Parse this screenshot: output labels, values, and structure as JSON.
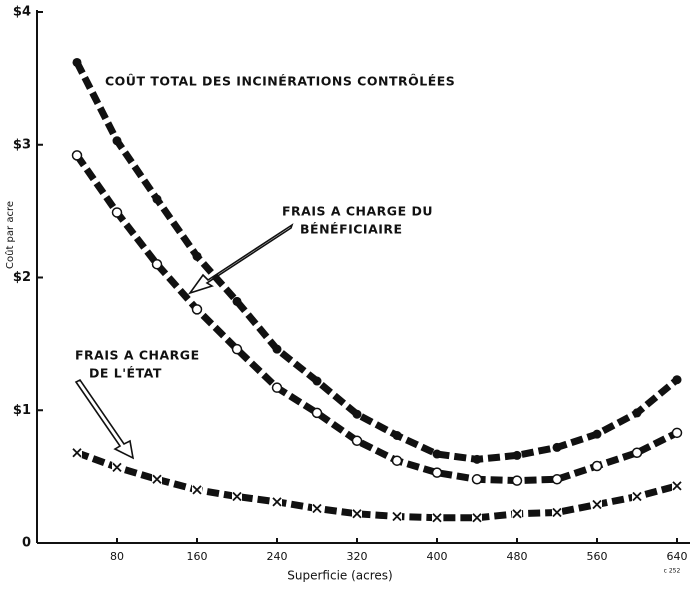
{
  "chart_data": {
    "type": "line",
    "x_label": "Superficie (acres)",
    "y_label": "Coût par acre",
    "figure_code": "c 252",
    "annotations": [
      [
        "COÛT TOTAL DES INCINÉRATIONS CONTRÔLÉES"
      ],
      [
        "FRAIS A CHARGE DU",
        "BÉNÉFICIAIRE"
      ],
      [
        "FRAIS A CHARGE",
        "DE L'ÉTAT"
      ]
    ],
    "x": [
      40,
      80,
      120,
      160,
      200,
      240,
      280,
      320,
      360,
      400,
      440,
      480,
      520,
      560,
      600,
      640
    ],
    "series": [
      {
        "color": "#111111",
        "marker": "filled-circle",
        "values": [
          3.62,
          3.03,
          2.59,
          2.16,
          1.82,
          1.46,
          1.22,
          0.97,
          0.81,
          0.67,
          0.63,
          0.66,
          0.72,
          0.82,
          0.98,
          1.23
        ]
      },
      {
        "color": "#111111",
        "marker": "circle",
        "values": [
          2.92,
          2.49,
          2.1,
          1.76,
          1.46,
          1.17,
          0.98,
          0.77,
          0.62,
          0.53,
          0.48,
          0.47,
          0.48,
          0.58,
          0.68,
          0.83
        ]
      },
      {
        "color": "#111111",
        "marker": "x",
        "values": [
          0.68,
          0.57,
          0.48,
          0.4,
          0.35,
          0.31,
          0.26,
          0.22,
          0.2,
          0.19,
          0.19,
          0.22,
          0.23,
          0.29,
          0.35,
          0.43
        ]
      }
    ],
    "xlim": [
      0,
      640
    ],
    "ylim": [
      0,
      4
    ],
    "xticks": [
      80,
      160,
      240,
      320,
      400,
      480,
      560,
      640
    ],
    "yticks": [
      0,
      {
        "value": 1,
        "label": "$1"
      },
      {
        "value": 2,
        "label": "$2"
      },
      {
        "value": 3,
        "label": "$3"
      },
      {
        "value": 4,
        "label": "$4"
      }
    ]
  }
}
